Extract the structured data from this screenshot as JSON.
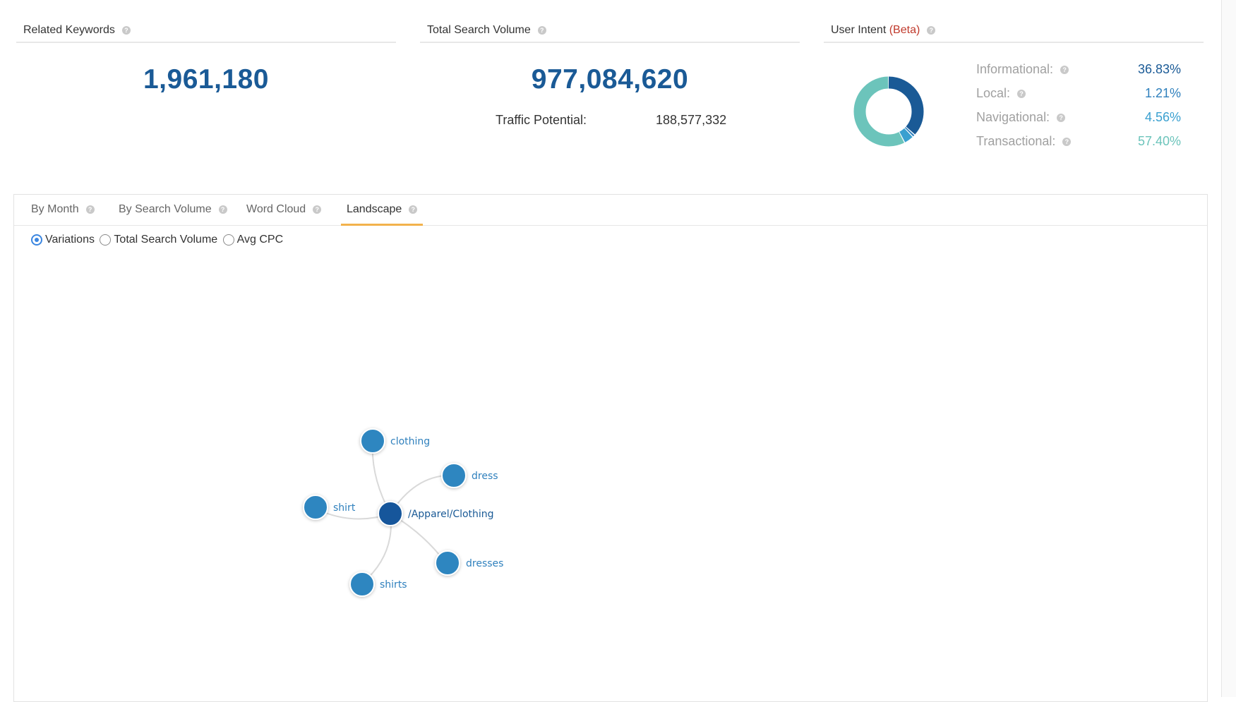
{
  "cards": {
    "related": {
      "title": "Related Keywords",
      "value": "1,961,180"
    },
    "volume": {
      "title": "Total Search Volume",
      "value": "977,084,620",
      "traffic_label": "Traffic Potential:",
      "traffic_value": "188,577,332"
    },
    "intent": {
      "title": "User Intent",
      "beta": "(Beta)",
      "items": [
        {
          "label": "Informational:",
          "value": "36.83%",
          "color": "#1a5a96",
          "fraction": 0.3683
        },
        {
          "label": "Local:",
          "value": "1.21%",
          "color": "#2f80bd",
          "fraction": 0.0121
        },
        {
          "label": "Navigational:",
          "value": "4.56%",
          "color": "#3aa0d0",
          "fraction": 0.0456
        },
        {
          "label": "Transactional:",
          "value": "57.40%",
          "color": "#6cc4bb",
          "fraction": 0.574
        }
      ]
    }
  },
  "tabs": [
    {
      "label": "By Month",
      "active": false
    },
    {
      "label": "By Search Volume",
      "active": false
    },
    {
      "label": "Word Cloud",
      "active": false
    },
    {
      "label": "Landscape",
      "active": true
    }
  ],
  "radios": [
    {
      "label": "Variations",
      "checked": true
    },
    {
      "label": "Total Search Volume",
      "checked": false
    },
    {
      "label": "Avg CPC",
      "checked": false
    }
  ],
  "graph": {
    "center": "/Apparel/Clothing",
    "nodes": [
      "clothing",
      "dress",
      "shirt",
      "dresses",
      "shirts"
    ]
  },
  "colors": {
    "accent": "#1a5a96",
    "node": "#2f86c0",
    "center_node": "#13579b",
    "tab_active": "#f2b24c",
    "beta": "#c0392b"
  }
}
